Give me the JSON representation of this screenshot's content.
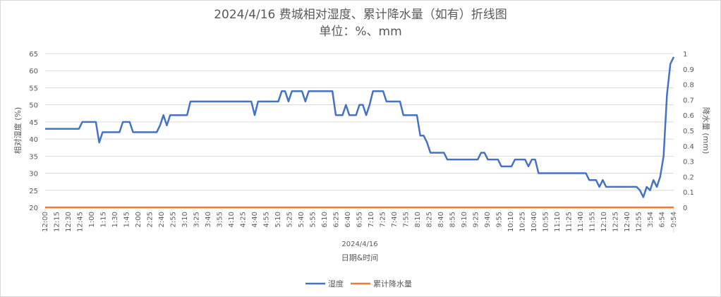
{
  "chart_data": {
    "type": "line",
    "title": "2024/4/16 费城相对湿度、累计降水量（如有）折线图",
    "subtitle": "单位：%、mm",
    "date_label": "2024/4/16",
    "xlabel": "日期&时间",
    "ylabel": "相对湿度 (%)",
    "y2label": "降水量 (mm)",
    "ylim": [
      20,
      65
    ],
    "yticks": [
      20,
      25,
      30,
      35,
      40,
      45,
      50,
      55,
      60,
      65
    ],
    "y2lim": [
      0,
      1
    ],
    "y2ticks": [
      "0",
      "0.1",
      "0.2",
      "0.3",
      "0.4",
      "0.5",
      "0.6",
      "0.7",
      "0.8",
      "0.9",
      "1"
    ],
    "grid": true,
    "legend_position": "bottom",
    "x_tick_labels": [
      "12:00",
      "12:15",
      "12:30",
      "12:45",
      "1:00",
      "1:15",
      "1:30",
      "1:45",
      "2:00",
      "2:25",
      "2:40",
      "2:55",
      "3:10",
      "3:25",
      "3:40",
      "3:55",
      "4:10",
      "4:25",
      "4:40",
      "4:55",
      "5:10",
      "5:25",
      "5:40",
      "5:55",
      "6:10",
      "6:25",
      "6:40",
      "6:55",
      "7:10",
      "7:25",
      "7:40",
      "7:55",
      "8:10",
      "8:25",
      "8:40",
      "8:55",
      "9:10",
      "9:25",
      "9:40",
      "9:55",
      "10:10",
      "10:25",
      "10:40",
      "10:55",
      "11:10",
      "11:25",
      "11:40",
      "11:55",
      "12:10",
      "12:25",
      "12:40",
      "12:55",
      "3:54",
      "6:54",
      "9:54"
    ],
    "series": [
      {
        "name": "湿度",
        "axis": "left",
        "color": "#4472C4",
        "values": [
          43,
          43,
          43,
          43,
          43,
          43,
          43,
          43,
          43,
          43,
          43,
          45,
          45,
          45,
          45,
          45,
          39,
          42,
          42,
          42,
          42,
          42,
          42,
          45,
          45,
          45,
          42,
          42,
          42,
          42,
          42,
          42,
          42,
          42,
          44,
          47,
          44,
          47,
          47,
          47,
          47,
          47,
          47,
          51,
          51,
          51,
          51,
          51,
          51,
          51,
          51,
          51,
          51,
          51,
          51,
          51,
          51,
          51,
          51,
          51,
          51,
          51,
          47,
          51,
          51,
          51,
          51,
          51,
          51,
          51,
          54,
          54,
          51,
          54,
          54,
          54,
          54,
          51,
          54,
          54,
          54,
          54,
          54,
          54,
          54,
          54,
          47,
          47,
          47,
          50,
          47,
          47,
          47,
          50,
          50,
          47,
          50,
          54,
          54,
          54,
          54,
          51,
          51,
          51,
          51,
          51,
          47,
          47,
          47,
          47,
          47,
          41,
          41,
          39,
          36,
          36,
          36,
          36,
          36,
          34,
          34,
          34,
          34,
          34,
          34,
          34,
          34,
          34,
          34,
          36,
          36,
          34,
          34,
          34,
          34,
          32,
          32,
          32,
          32,
          34,
          34,
          34,
          34,
          32,
          34,
          34,
          30,
          30,
          30,
          30,
          30,
          30,
          30,
          30,
          30,
          30,
          30,
          30,
          30,
          30,
          30,
          28,
          28,
          28,
          26,
          28,
          26,
          26,
          26,
          26,
          26,
          26,
          26,
          26,
          26,
          26,
          25,
          23,
          26,
          25,
          28,
          26,
          29,
          35,
          53,
          62,
          64
        ]
      },
      {
        "name": "累计降水量",
        "axis": "right",
        "color": "#ED7D31",
        "values": [
          0,
          0
        ]
      }
    ]
  }
}
